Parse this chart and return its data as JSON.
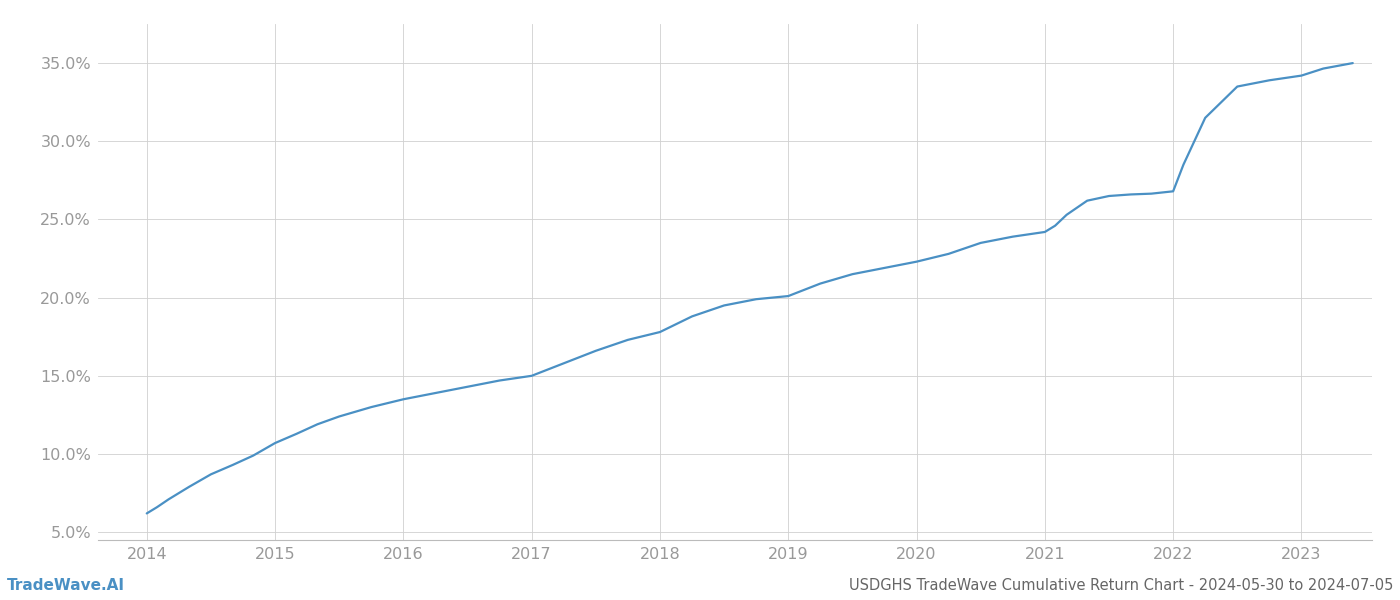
{
  "title": "USDGHS TradeWave Cumulative Return Chart - 2024-05-30 to 2024-07-05",
  "watermark": "TradeWave.AI",
  "line_color": "#4a90c4",
  "background_color": "#ffffff",
  "grid_color": "#d0d0d0",
  "x_years": [
    2014,
    2015,
    2016,
    2017,
    2018,
    2019,
    2020,
    2021,
    2022,
    2023
  ],
  "x_data": [
    2014.0,
    2014.08,
    2014.17,
    2014.33,
    2014.5,
    2014.67,
    2014.83,
    2015.0,
    2015.17,
    2015.33,
    2015.5,
    2015.75,
    2016.0,
    2016.25,
    2016.5,
    2016.75,
    2017.0,
    2017.25,
    2017.5,
    2017.75,
    2018.0,
    2018.25,
    2018.5,
    2018.75,
    2019.0,
    2019.25,
    2019.5,
    2019.75,
    2020.0,
    2020.25,
    2020.5,
    2020.75,
    2021.0,
    2021.08,
    2021.17,
    2021.33,
    2021.5,
    2021.67,
    2021.83,
    2022.0,
    2022.08,
    2022.25,
    2022.5,
    2022.75,
    2023.0,
    2023.17,
    2023.4
  ],
  "y_data": [
    6.2,
    6.6,
    7.1,
    7.9,
    8.7,
    9.3,
    9.9,
    10.7,
    11.3,
    11.9,
    12.4,
    13.0,
    13.5,
    13.9,
    14.3,
    14.7,
    15.0,
    15.8,
    16.6,
    17.3,
    17.8,
    18.8,
    19.5,
    19.9,
    20.1,
    20.9,
    21.5,
    21.9,
    22.3,
    22.8,
    23.5,
    23.9,
    24.2,
    24.6,
    25.3,
    26.2,
    26.5,
    26.6,
    26.65,
    26.8,
    28.5,
    31.5,
    33.5,
    33.9,
    34.2,
    34.65,
    35.0
  ],
  "ylim": [
    4.5,
    37.5
  ],
  "yticks": [
    5.0,
    10.0,
    15.0,
    20.0,
    25.0,
    30.0,
    35.0
  ],
  "xlim": [
    2013.62,
    2023.55
  ],
  "tick_label_color": "#999999",
  "axis_line_color": "#bbbbbb",
  "title_color": "#666666",
  "watermark_color": "#4a90c4",
  "title_fontsize": 10.5,
  "tick_fontsize": 11.5,
  "watermark_fontsize": 11,
  "line_width": 1.6
}
